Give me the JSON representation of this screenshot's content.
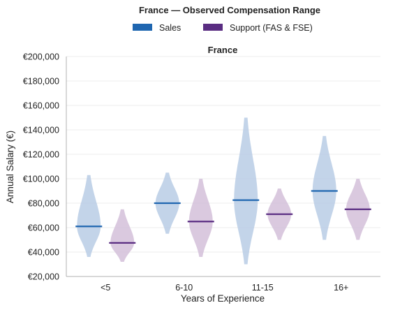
{
  "chart_data": {
    "type": "violin",
    "title": "France — Observed Compensation Range",
    "subtitle": "France",
    "xlabel": "Years of Experience",
    "ylabel": "Annual Salary (€)",
    "categories": [
      "<5",
      "6-10",
      "11-15",
      "16+"
    ],
    "ylim": [
      20000,
      200000
    ],
    "yticks": [
      20000,
      40000,
      60000,
      80000,
      100000,
      120000,
      140000,
      160000,
      180000,
      200000
    ],
    "ytick_labels": [
      "€20,000",
      "€40,000",
      "€60,000",
      "€80,000",
      "€100,000",
      "€120,000",
      "€140,000",
      "€160,000",
      "€180,000",
      "€200,000"
    ],
    "grid": true,
    "legend_position": "top-center",
    "series": [
      {
        "name": "Sales",
        "color": "#1f66b0",
        "fill": "#b9cde5",
        "min": [
          36000,
          55000,
          30000,
          50000
        ],
        "median": [
          61000,
          80000,
          82500,
          90000
        ],
        "max": [
          103000,
          105000,
          150000,
          135000
        ]
      },
      {
        "name": "Support (FAS & FSE)",
        "color": "#5a2d82",
        "fill": "#d4bfd9",
        "min": [
          32000,
          36000,
          50000,
          50000
        ],
        "median": [
          47500,
          65000,
          71000,
          75000
        ],
        "max": [
          75000,
          100000,
          92000,
          100000
        ]
      }
    ]
  }
}
